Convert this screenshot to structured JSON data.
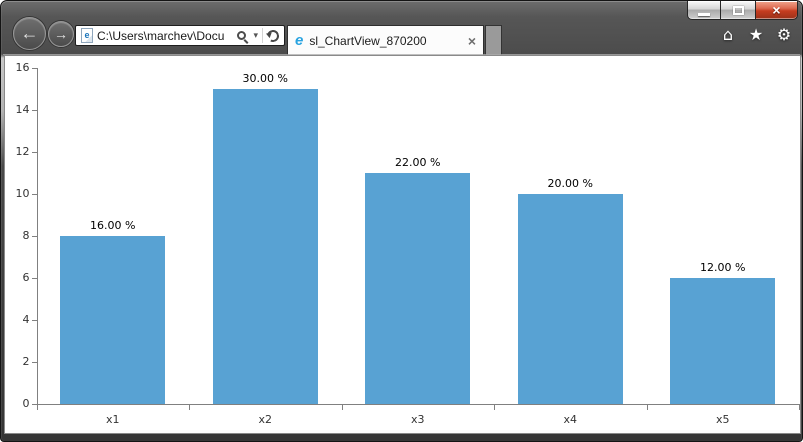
{
  "window": {
    "close_glyph": "×"
  },
  "browser": {
    "back_glyph": "←",
    "forward_glyph": "→",
    "address": {
      "value": "C:\\Users\\marchev\\Docu",
      "dropdown_glyph": "▾",
      "favicon_letter": "e"
    },
    "tab": {
      "title": "sl_ChartView_870200",
      "close_glyph": "×",
      "favicon_letter": "e"
    },
    "commands": {
      "home_glyph": "⌂",
      "favorites_glyph": "★",
      "tools_glyph": "⚙"
    }
  },
  "chart_data": {
    "type": "bar",
    "title": "",
    "categories": [
      "x1",
      "x2",
      "x3",
      "x4",
      "x5"
    ],
    "values": [
      8,
      15,
      11,
      10,
      6
    ],
    "point_labels": [
      "16.00 %",
      "30.00 %",
      "22.00 %",
      "20.00 %",
      "12.00 %"
    ],
    "xlabel": "",
    "ylabel": "",
    "ylim": [
      0,
      16
    ],
    "yticks": [
      0,
      2,
      4,
      6,
      8,
      10,
      12,
      14,
      16
    ],
    "grid": false,
    "legend": "none",
    "bar_color": "#58A2D3",
    "axis_color": "#808080",
    "value_label_color": "#000000",
    "tick_label_color": "#333333"
  }
}
